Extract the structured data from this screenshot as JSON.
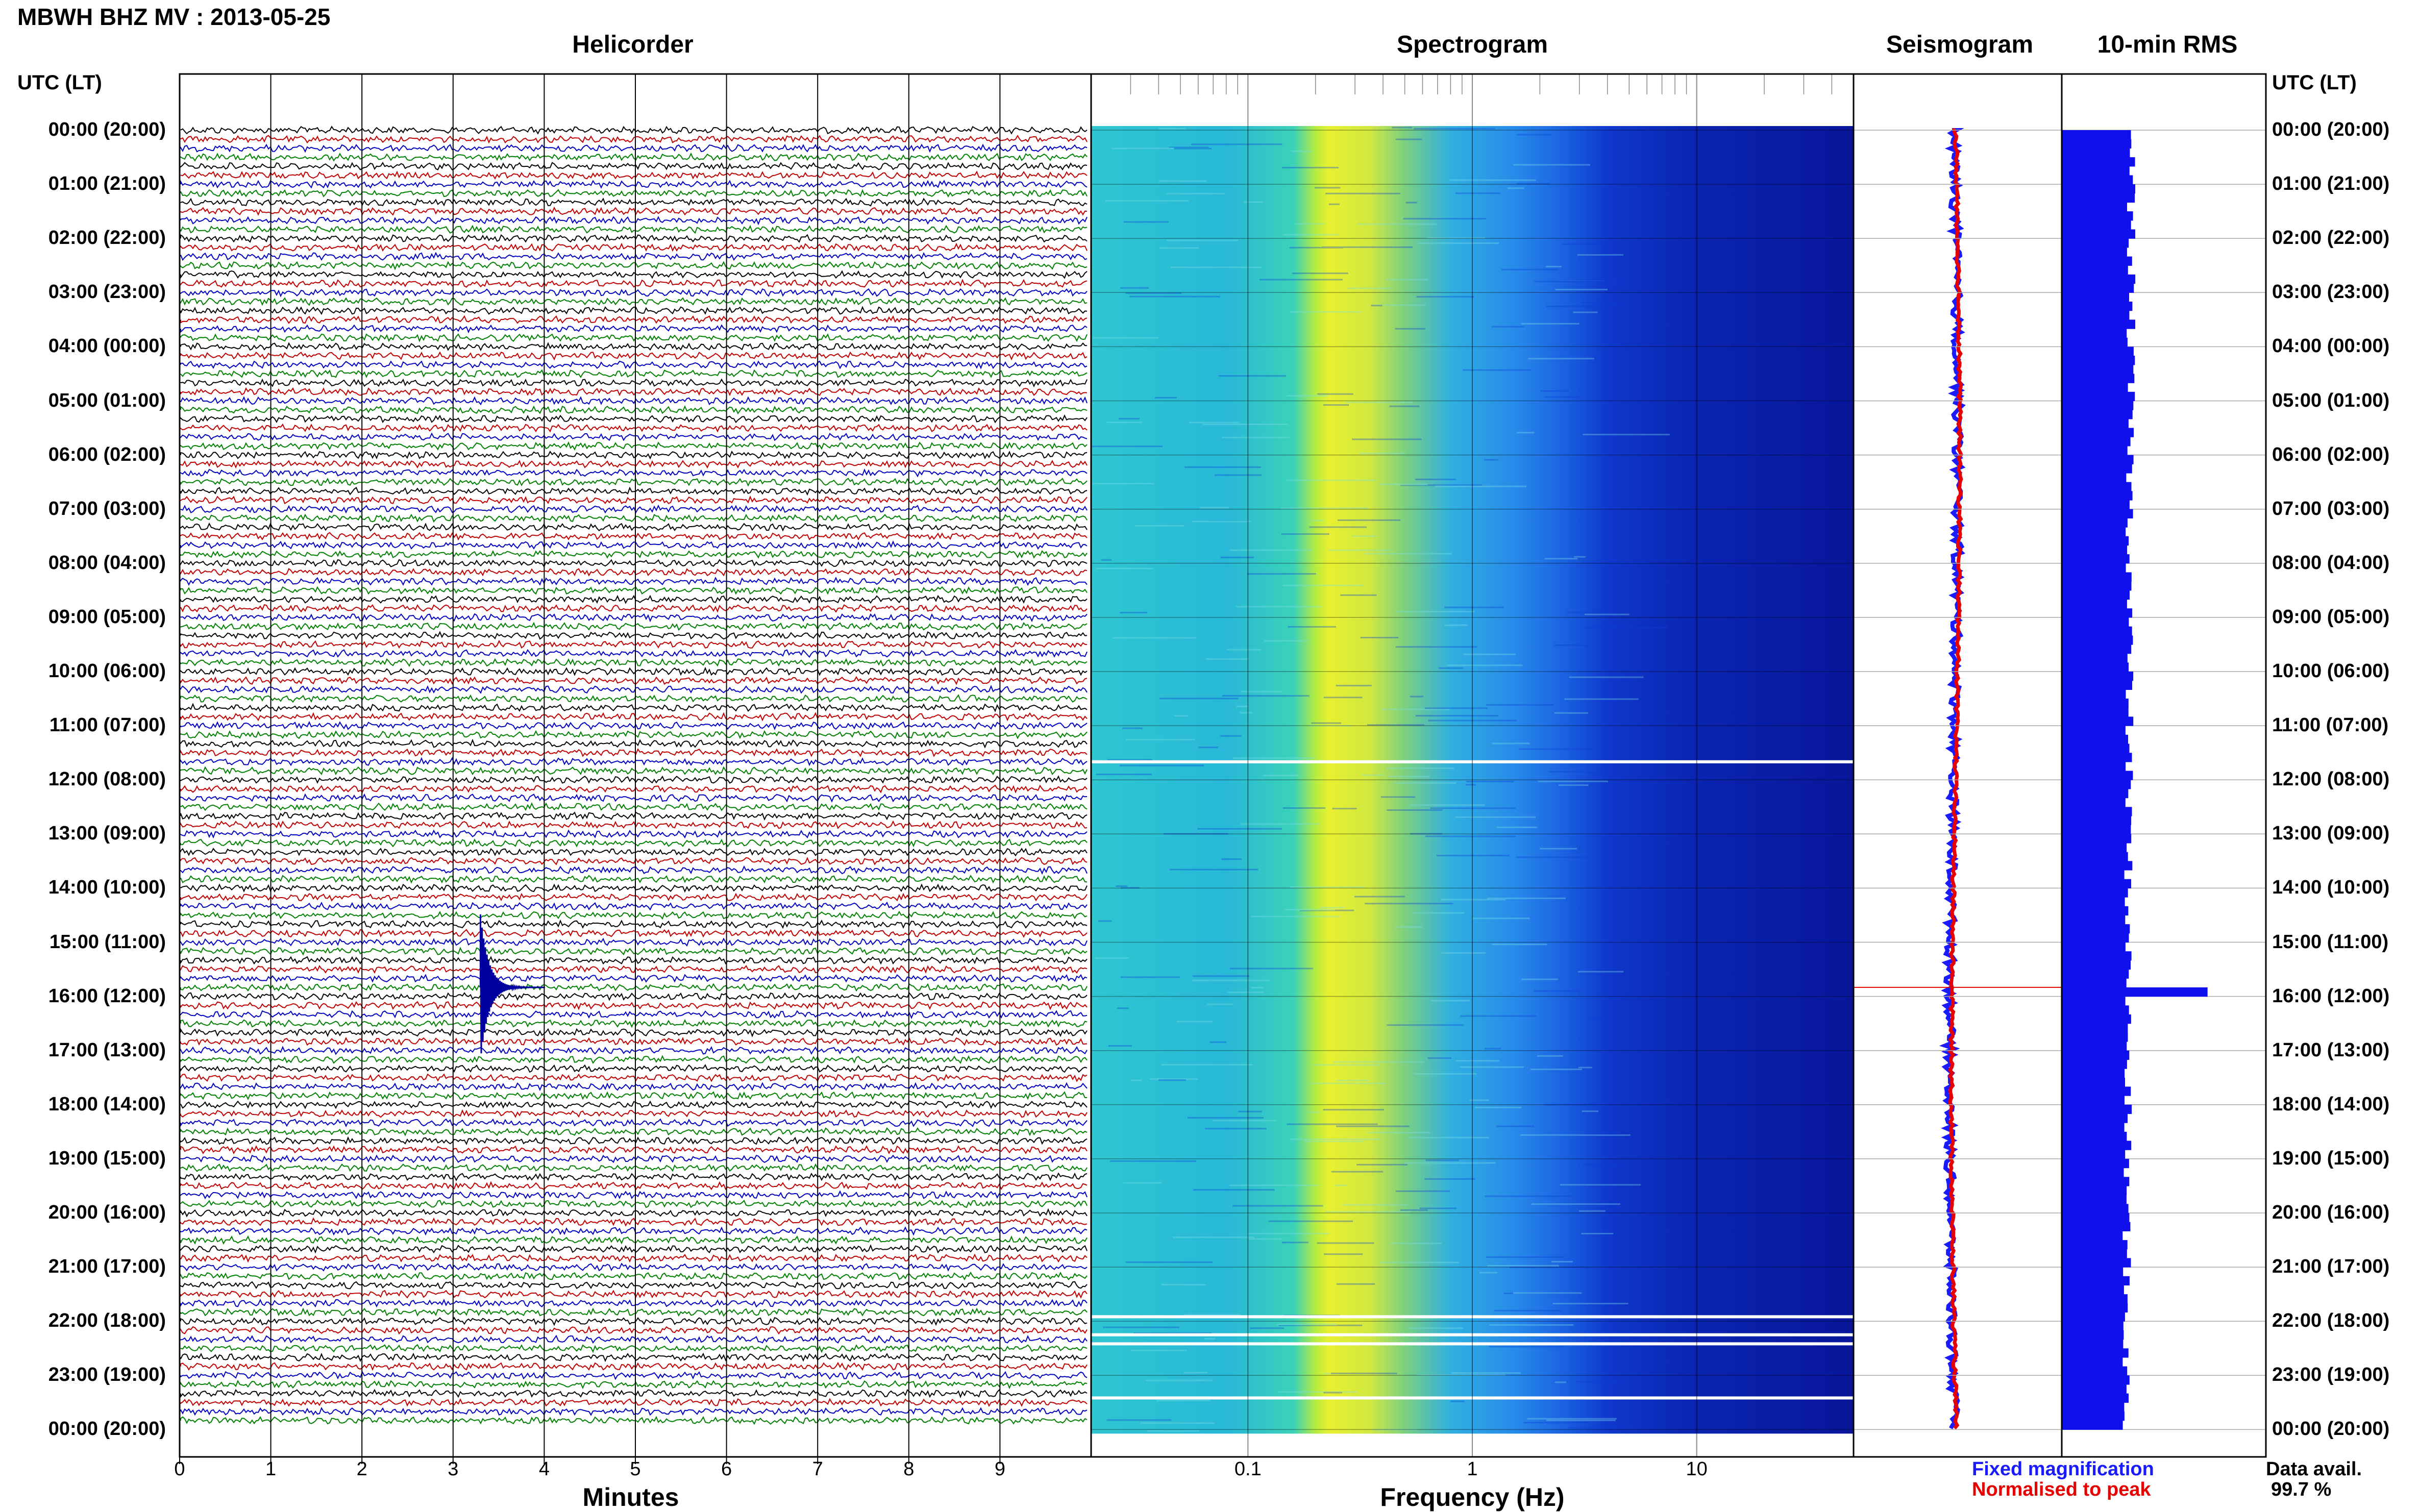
{
  "header": {
    "title": "MBWH BHZ MV : 2013-05-25"
  },
  "panels": {
    "helicorder": "Helicorder",
    "spectrogram": "Spectrogram",
    "seismogram": "Seismogram",
    "rms": "10-min RMS"
  },
  "utc_header_left": "UTC (LT)",
  "utc_header_right": "UTC (LT)",
  "row_labels": [
    "00:00 (20:00)",
    "01:00 (21:00)",
    "02:00 (22:00)",
    "03:00 (23:00)",
    "04:00 (00:00)",
    "05:00 (01:00)",
    "06:00 (02:00)",
    "07:00 (03:00)",
    "08:00 (04:00)",
    "09:00 (05:00)",
    "10:00 (06:00)",
    "11:00 (07:00)",
    "12:00 (08:00)",
    "13:00 (09:00)",
    "14:00 (10:00)",
    "15:00 (11:00)",
    "16:00 (12:00)",
    "17:00 (13:00)",
    "18:00 (14:00)",
    "19:00 (15:00)",
    "20:00 (16:00)",
    "21:00 (17:00)",
    "22:00 (18:00)",
    "23:00 (19:00)",
    "00:00 (20:00)"
  ],
  "x_axes": {
    "minutes_label": "Minutes",
    "minutes_ticks": [
      "0",
      "1",
      "2",
      "3",
      "4",
      "5",
      "6",
      "7",
      "8",
      "9"
    ],
    "frequency_label": "Frequency (Hz)",
    "frequency_ticks": [
      "0.1",
      "1",
      "10"
    ]
  },
  "legend": {
    "fixed": "Fixed magnification",
    "normalised": "Normalised to peak"
  },
  "availability": {
    "label": "Data avail.",
    "value": "99.7 %"
  },
  "colors": {
    "trace_cycle": [
      "#000000",
      "#c00000",
      "#0000c0",
      "#008000"
    ],
    "fixed": "#1a1aff",
    "normalised": "#e60000",
    "rms_bar": "#1010ee"
  },
  "chart_data": {
    "type": "heatmap",
    "station": "MBWH BHZ MV",
    "date": "2013-05-25",
    "helicorder": {
      "x_range_minutes": [
        0,
        10
      ],
      "rows": 144,
      "row_minutes": 10,
      "event_time_utc": "15:50",
      "event_minute": 3.3
    },
    "spectrogram": {
      "x_scale": "log",
      "x_range_hz": [
        0.02,
        50
      ],
      "energy_band_hz": [
        0.2,
        0.8
      ],
      "data_gaps_utc": [
        "11:40",
        "21:55",
        "22:15",
        "22:25",
        "23:25"
      ]
    },
    "rms": {
      "interval_minutes": 10,
      "typical_level": 0.12,
      "peak_time_utc": "15:50",
      "peak_level": 0.25
    }
  }
}
